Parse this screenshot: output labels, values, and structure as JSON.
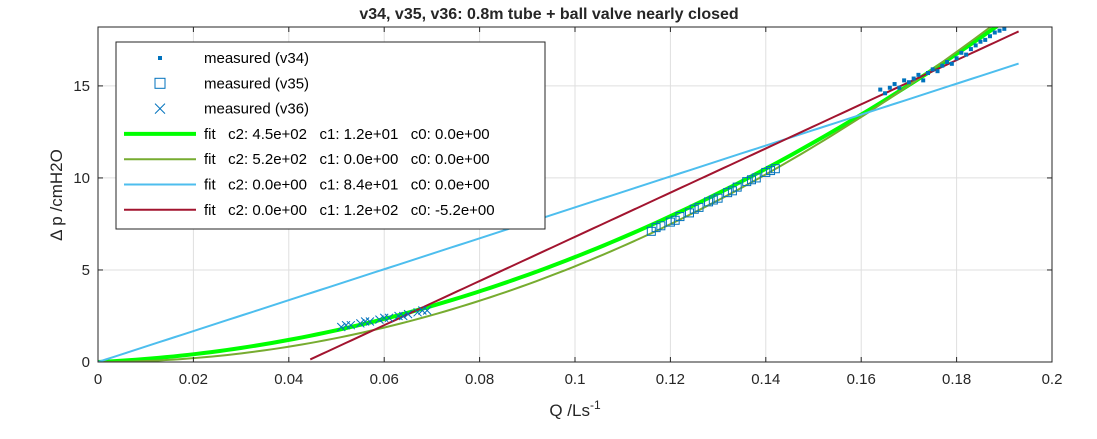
{
  "chart_data": {
    "type": "scatter",
    "title": "v34, v35, v36: 0.8m tube + ball valve nearly closed",
    "xlabel": "Q /Ls",
    "xlabel_superscript": "-1",
    "ylabel": "Δ p /cmH2O",
    "xlim": [
      0,
      0.2
    ],
    "ylim": [
      0,
      18.2
    ],
    "xticks": [
      0,
      0.02,
      0.04,
      0.06,
      0.08,
      0.1,
      0.12,
      0.14,
      0.16,
      0.18,
      0.2
    ],
    "xtick_labels": [
      "0",
      "0.02",
      "0.04",
      "0.06",
      "0.08",
      "0.1",
      "0.12",
      "0.14",
      "0.16",
      "0.18",
      "0.2"
    ],
    "yticks": [
      0,
      5,
      10,
      15
    ],
    "ytick_labels": [
      "0",
      "5",
      "10",
      "15"
    ],
    "grid": true,
    "legend_position": "top-left",
    "series": [
      {
        "name": "measured (v34)",
        "kind": "scatter",
        "marker": "dot",
        "color": "#0072BD",
        "x": [
          0.164,
          0.165,
          0.166,
          0.167,
          0.168,
          0.169,
          0.17,
          0.171,
          0.172,
          0.173,
          0.174,
          0.175,
          0.176,
          0.177,
          0.178,
          0.179,
          0.18,
          0.181,
          0.182,
          0.183,
          0.184,
          0.185,
          0.186,
          0.187,
          0.188,
          0.189,
          0.19,
          0.191,
          0.192
        ],
        "y": [
          14.8,
          14.6,
          14.9,
          15.1,
          14.9,
          15.3,
          15.2,
          15.4,
          15.6,
          15.3,
          15.7,
          15.9,
          15.8,
          16.1,
          16.3,
          16.2,
          16.5,
          16.8,
          16.7,
          17.0,
          17.2,
          17.4,
          17.5,
          17.7,
          17.9,
          18.0,
          18.1,
          18.3,
          18.4
        ]
      },
      {
        "name": "measured (v35)",
        "kind": "scatter",
        "marker": "square",
        "color": "#0072BD",
        "x": [
          0.116,
          0.118,
          0.12,
          0.122,
          0.124,
          0.126,
          0.128,
          0.13,
          0.132,
          0.134,
          0.136,
          0.138,
          0.14,
          0.142,
          0.117,
          0.121,
          0.125,
          0.129,
          0.133,
          0.137,
          0.141
        ],
        "y": [
          7.1,
          7.4,
          7.6,
          7.9,
          8.1,
          8.4,
          8.7,
          8.9,
          9.2,
          9.5,
          9.8,
          10.0,
          10.3,
          10.5,
          7.3,
          7.7,
          8.3,
          8.8,
          9.3,
          9.9,
          10.4
        ]
      },
      {
        "name": "measured (v36)",
        "kind": "scatter",
        "marker": "x",
        "color": "#0072BD",
        "x": [
          0.051,
          0.053,
          0.055,
          0.057,
          0.059,
          0.061,
          0.063,
          0.065,
          0.067,
          0.069,
          0.052,
          0.056,
          0.06,
          0.064,
          0.068
        ],
        "y": [
          1.9,
          2.0,
          2.1,
          2.2,
          2.3,
          2.4,
          2.5,
          2.6,
          2.7,
          2.8,
          2.0,
          2.2,
          2.4,
          2.5,
          2.8
        ]
      },
      {
        "name": "fit   c2: 4.5e+02   c1: 1.2e+01   c0: 0.0e+00",
        "kind": "line",
        "color": "#00FF00",
        "width": 4,
        "c2": 450,
        "c1": 12,
        "c0": 0,
        "x_range": [
          0,
          0.19
        ]
      },
      {
        "name": "fit   c2: 5.2e+02   c1: 0.0e+00   c0: 0.0e+00",
        "kind": "line",
        "color": "#77AC30",
        "width": 2,
        "c2": 520,
        "c1": 0,
        "c0": 0,
        "x_range": [
          0,
          0.19
        ]
      },
      {
        "name": "fit   c2: 0.0e+00   c1: 8.4e+01   c0: 0.0e+00",
        "kind": "line",
        "color": "#4DBEEE",
        "width": 2,
        "c2": 0,
        "c1": 84,
        "c0": 0,
        "x_range": [
          0,
          0.193
        ]
      },
      {
        "name": "fit   c2: 0.0e+00   c1: 1.2e+02   c0: -5.2e+00",
        "kind": "line",
        "color": "#A2142F",
        "width": 2,
        "c2": 0,
        "c1": 120,
        "c0": -5.2,
        "x_range": [
          0.0445,
          0.193
        ]
      }
    ]
  }
}
